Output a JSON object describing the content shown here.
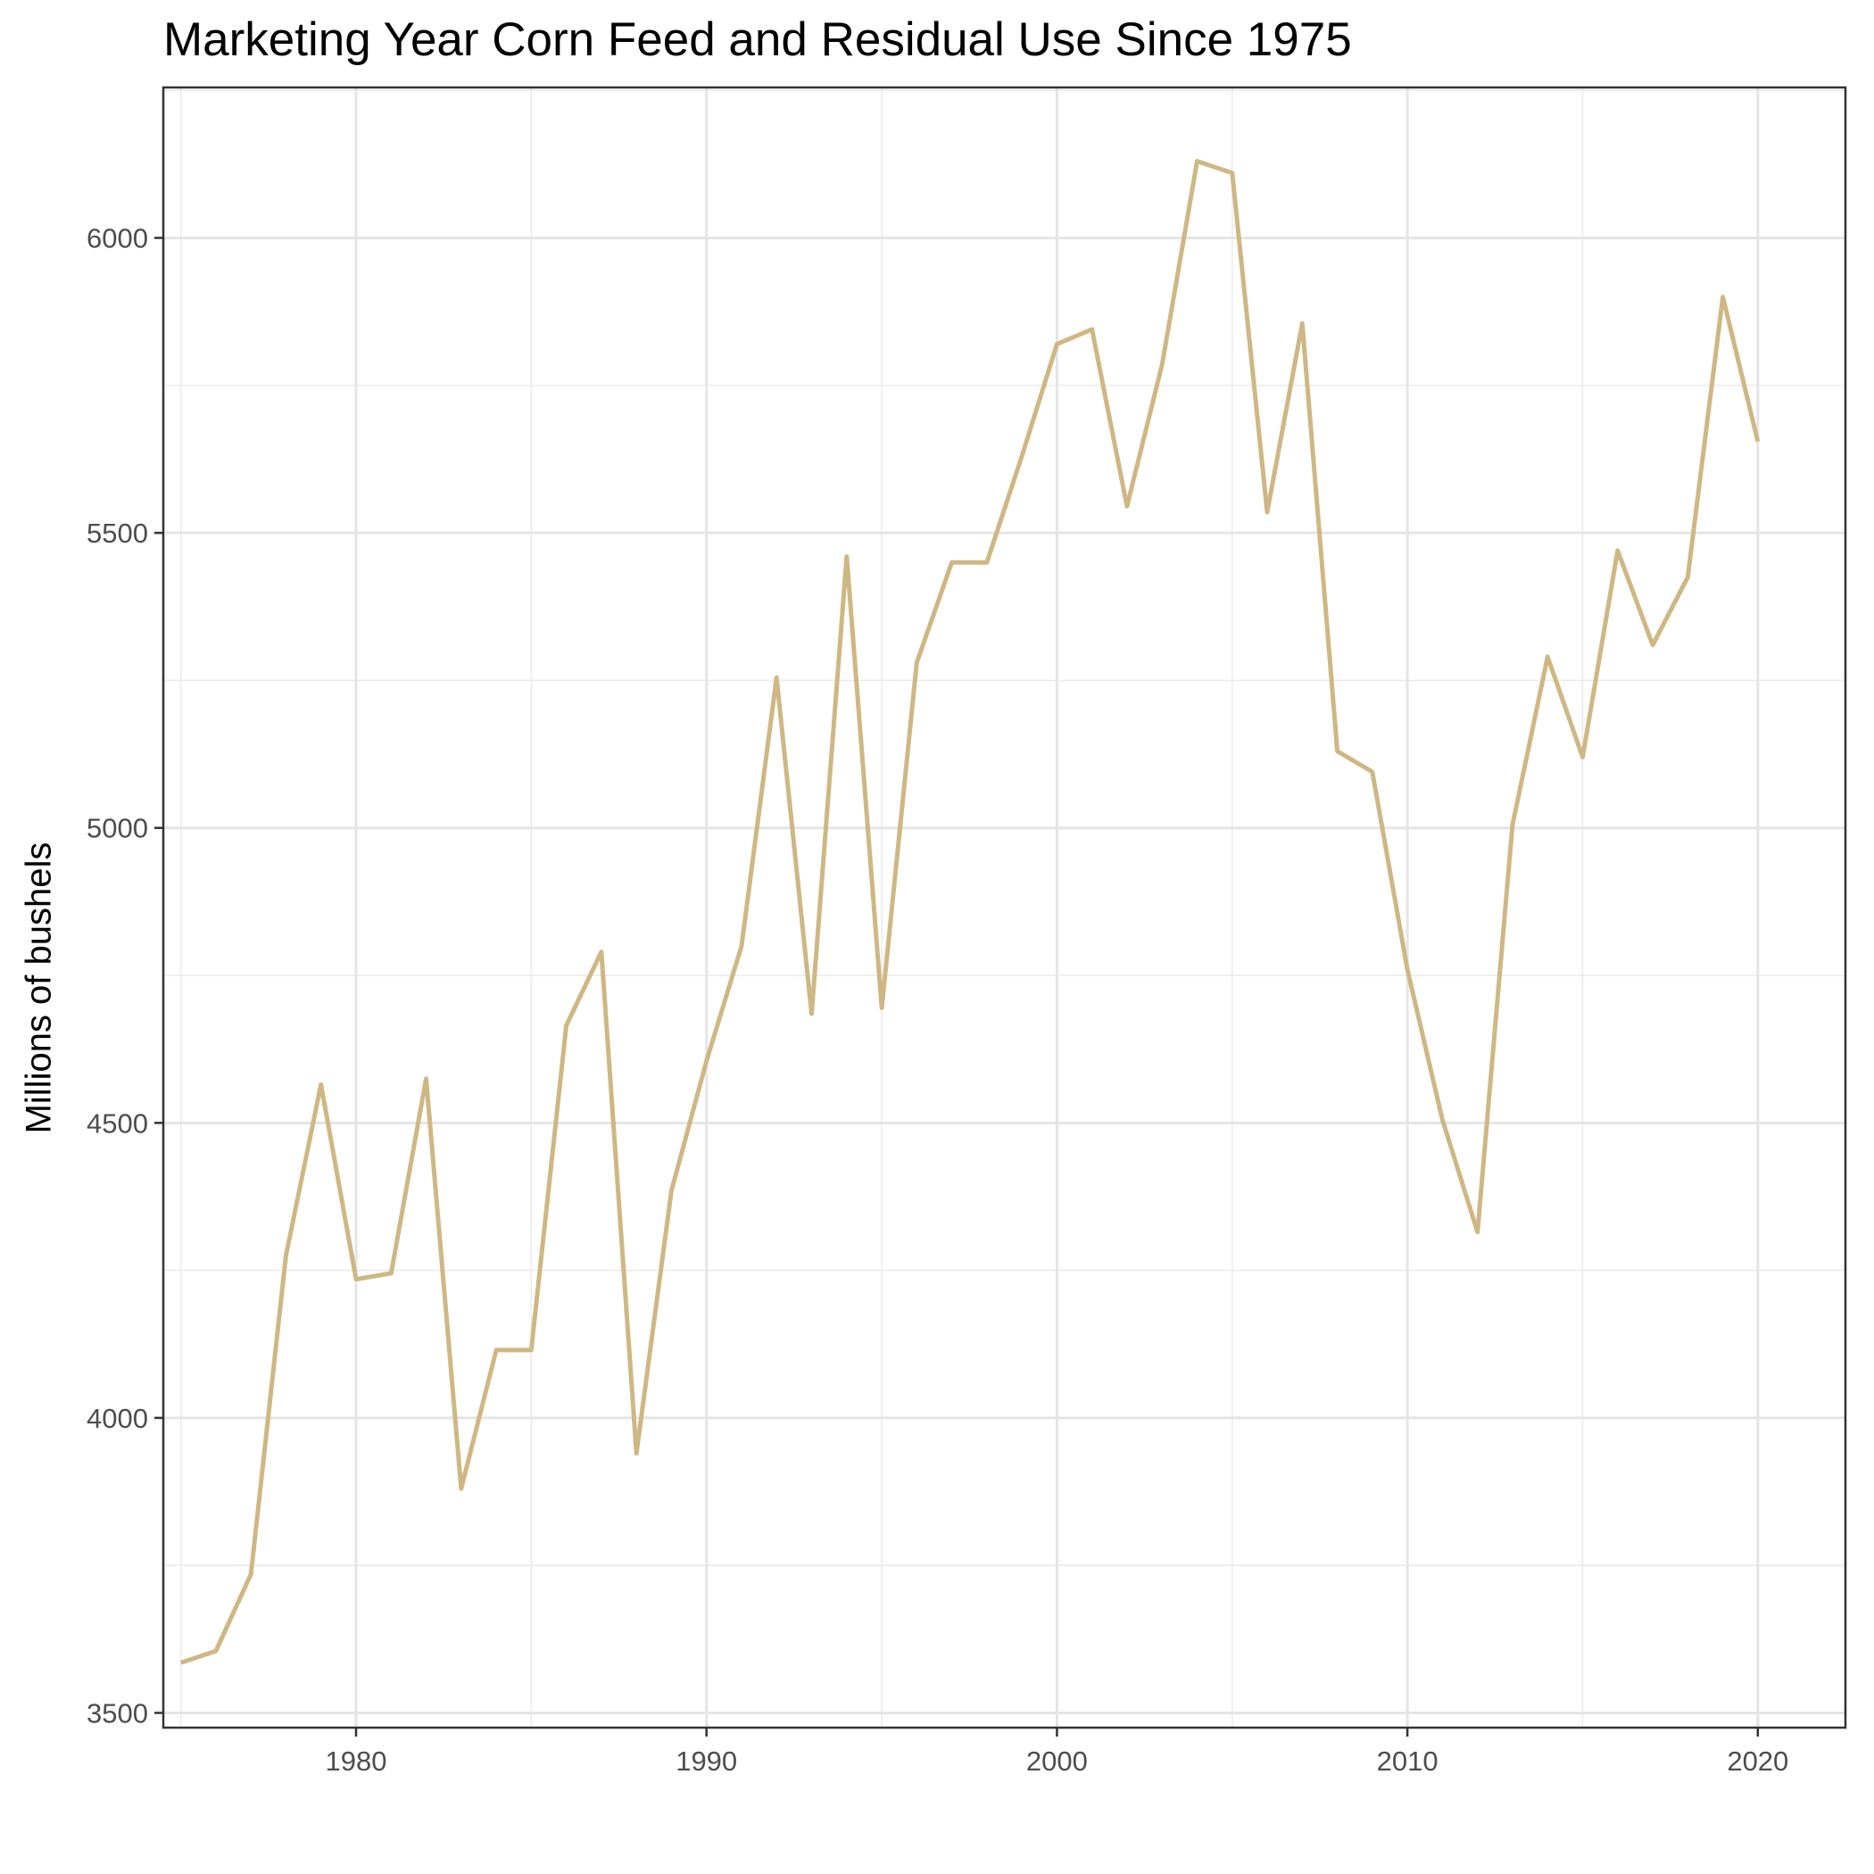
{
  "chart_data": {
    "type": "line",
    "title": "Marketing Year Corn Feed and Residual Use Since 1975",
    "xlabel": "",
    "ylabel": "Millions of bushels",
    "xlim": [
      1974.5,
      2022.5
    ],
    "ylim": [
      3475,
      6255
    ],
    "x_ticks": [
      1980,
      1990,
      2000,
      2010,
      2020
    ],
    "y_ticks": [
      3500,
      4000,
      4500,
      5000,
      5500,
      6000
    ],
    "grid": true,
    "legend": "none",
    "series": [
      {
        "color": "#cfb784",
        "x": [
          1975,
          1976,
          1977,
          1978,
          1979,
          1980,
          1981,
          1982,
          1983,
          1984,
          1985,
          1986,
          1987,
          1988,
          1989,
          1990,
          1991,
          1992,
          1993,
          1994,
          1995,
          1996,
          1997,
          1998,
          1999,
          2000,
          2001,
          2002,
          2003,
          2004,
          2005,
          2006,
          2007,
          2008,
          2009,
          2010,
          2011,
          2012,
          2013,
          2014,
          2015,
          2016,
          2017,
          2018,
          2019,
          2020
        ],
        "y": [
          3585,
          3605,
          3735,
          4275,
          4565,
          4235,
          4245,
          4575,
          3880,
          4115,
          4115,
          4665,
          4790,
          3940,
          4385,
          4605,
          4800,
          5255,
          4685,
          5460,
          4695,
          5280,
          5450,
          5450,
          5630,
          5820,
          5845,
          5545,
          5785,
          6130,
          6110,
          5535,
          5855,
          5130,
          5095,
          4760,
          4505,
          4315,
          5005,
          5290,
          5120,
          5470,
          5310,
          5425,
          5900,
          5655
        ]
      }
    ]
  }
}
